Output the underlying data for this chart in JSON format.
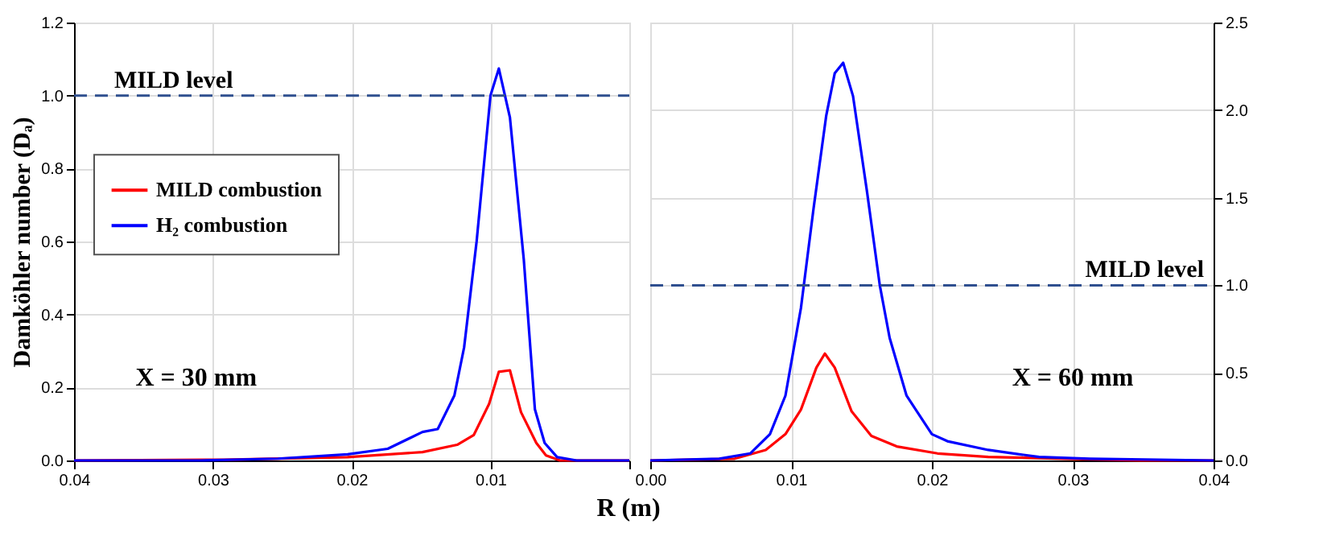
{
  "chart_data": [
    {
      "type": "line",
      "xlabel": "R (m)",
      "ylabel": "Damköhler number (Dₐ)",
      "xlim": [
        0.04,
        0
      ],
      "ylim": [
        0,
        1.2
      ],
      "xticks": [
        {
          "value": 0.04,
          "label": "0.04"
        },
        {
          "value": 0.03,
          "label": "0.03"
        },
        {
          "value": 0.02,
          "label": "0.02"
        },
        {
          "value": 0.01,
          "label": "0.01"
        },
        {
          "value": 0,
          "label": null
        }
      ],
      "yticks": [
        {
          "value": 0,
          "label": "0.0"
        },
        {
          "value": 0.2,
          "label": "0.2"
        },
        {
          "value": 0.4,
          "label": "0.4"
        },
        {
          "value": 0.6,
          "label": "0.6"
        },
        {
          "value": 0.8,
          "label": "0.8"
        },
        {
          "value": 1.0,
          "label": "1.0"
        },
        {
          "value": 1.2,
          "label": "1.2"
        }
      ],
      "grid": true,
      "legend": "left",
      "ref_lines": [
        {
          "axis": "y",
          "value": 1.0,
          "label": "MILD level",
          "color": "#2f4f8f",
          "line_style": "dashed"
        }
      ],
      "annotations": [
        "X = 30 mm"
      ],
      "series": [
        {
          "name": "MILD combustion",
          "color": "#ff0000",
          "x": [
            0.04,
            0.0292,
            0.0203,
            0.0149,
            0.0124,
            0.0112,
            0.0101,
            0.0094,
            0.0086,
            0.0078,
            0.0067,
            0.006,
            0.005,
            0
          ],
          "values": [
            0,
            0.002,
            0.009,
            0.023,
            0.043,
            0.07,
            0.155,
            0.243,
            0.247,
            0.132,
            0.048,
            0.014,
            0,
            0
          ]
        },
        {
          "name": "H₂ combustion",
          "color": "#0000ff",
          "x": [
            0.04,
            0.031,
            0.0253,
            0.0203,
            0.0174,
            0.0149,
            0.0138,
            0.0126,
            0.0119,
            0.011,
            0.01,
            0.0094,
            0.0086,
            0.0076,
            0.0068,
            0.0061,
            0.0052,
            0.0038,
            0
          ],
          "values": [
            0,
            0,
            0.005,
            0.017,
            0.032,
            0.078,
            0.086,
            0.178,
            0.31,
            0.6,
            1.0,
            1.074,
            0.94,
            0.55,
            0.14,
            0.048,
            0.009,
            0,
            0
          ]
        }
      ]
    },
    {
      "type": "line",
      "xlim": [
        0,
        0.04
      ],
      "y2lim": [
        0,
        2.5
      ],
      "xticks": [
        {
          "value": 0,
          "label": "0.00"
        },
        {
          "value": 0.01,
          "label": "0.01"
        },
        {
          "value": 0.02,
          "label": "0.02"
        },
        {
          "value": 0.03,
          "label": "0.03"
        },
        {
          "value": 0.04,
          "label": "0.04"
        }
      ],
      "y2ticks": [
        {
          "value": 0,
          "label": "0.0"
        },
        {
          "value": 0.5,
          "label": "0.5"
        },
        {
          "value": 1.0,
          "label": "1.0"
        },
        {
          "value": 1.5,
          "label": "1.5"
        },
        {
          "value": 2.0,
          "label": "2.0"
        },
        {
          "value": 2.5,
          "label": "2.5"
        }
      ],
      "grid": true,
      "ref_lines": [
        {
          "axis": "y2",
          "value": 1.0,
          "label": "MILD level",
          "color": "#2f4f8f",
          "line_style": "dashed"
        }
      ],
      "annotations": [
        "X = 60 mm"
      ],
      "series": [
        {
          "color": "#ff0000",
          "axis": "y2",
          "x": [
            0,
            0.006,
            0.0082,
            0.0096,
            0.0107,
            0.0118,
            0.0124,
            0.0131,
            0.0143,
            0.0157,
            0.0175,
            0.0204,
            0.024,
            0.0294,
            0.0348,
            0.04
          ],
          "values": [
            0,
            0.01,
            0.06,
            0.15,
            0.29,
            0.53,
            0.61,
            0.53,
            0.28,
            0.14,
            0.08,
            0.04,
            0.02,
            0.01,
            0,
            0
          ]
        },
        {
          "color": "#0000ff",
          "axis": "y2",
          "x": [
            0,
            0.0049,
            0.0071,
            0.0085,
            0.0096,
            0.0107,
            0.0116,
            0.0125,
            0.0131,
            0.0137,
            0.0144,
            0.0154,
            0.0163,
            0.017,
            0.0182,
            0.02,
            0.0211,
            0.024,
            0.0276,
            0.0312,
            0.04
          ],
          "values": [
            0,
            0.01,
            0.04,
            0.15,
            0.37,
            0.87,
            1.44,
            1.97,
            2.21,
            2.27,
            2.08,
            1.53,
            1.0,
            0.7,
            0.37,
            0.15,
            0.11,
            0.06,
            0.02,
            0.01,
            0
          ]
        }
      ]
    }
  ]
}
